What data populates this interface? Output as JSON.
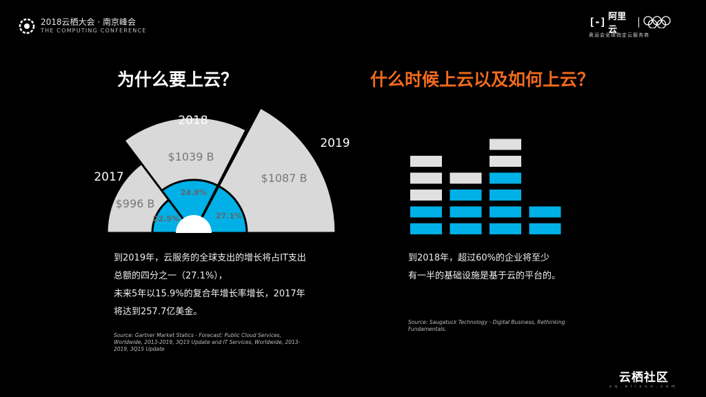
{
  "header": {
    "event_title": "2018云栖大会 · 南京峰会",
    "event_subtitle": "THE COMPUTING CONFERENCE",
    "brand_symbol": "[-]",
    "brand_name": "阿里云",
    "brand_subtitle": "奥运会全球指定云服务商"
  },
  "left": {
    "title": "为什么要上云？",
    "paragraph": [
      "到2019年，云服务的全球支出的增长将占IT支出",
      "总额的四分之一（27.1%），",
      "未来5年以15.9%的复合年增长率增长，2017年",
      "将达到257.7亿美金。"
    ],
    "source": [
      "Source: Gartner Market Statics - Forecast: Public Cloud Services,",
      "Worldwide, 2013-2019, 3Q15 Update and IT Services, Worldwide, 2013-",
      "2019, 3Q15 Update"
    ]
  },
  "right": {
    "title": "什么时候上云以及如何上云？",
    "paragraph": [
      "到2018年，超过60%的企业将至少",
      "有一半的基础设施是基于云的平台的。"
    ],
    "source": [
      "Source: Saugatuck Technology - Digital Business, Rethinking",
      "Fundamentals."
    ]
  },
  "chart_data": [
    {
      "type": "pie",
      "categories": [
        "2017",
        "2018",
        "2019"
      ],
      "values": [
        996,
        1039,
        1087
      ],
      "value_labels": [
        "$996 B",
        "$1039 B",
        "$1087 B"
      ],
      "share_values": [
        22.5,
        24.8,
        27.1
      ],
      "share_labels": [
        "22.5%",
        "24.8%",
        "27.1%"
      ],
      "colors": {
        "outer": "#d9d9d9",
        "inner": "#00b0e6",
        "value_text": "#777777",
        "share_text": "#666666"
      }
    },
    {
      "type": "bar",
      "columns": [
        {
          "blue": 2,
          "gray": 3
        },
        {
          "blue": 3,
          "gray": 1
        },
        {
          "blue": 4,
          "gray": 2
        },
        {
          "blue": 2,
          "gray": 0
        }
      ],
      "colors": {
        "blue": "#00b0e6",
        "gray": "#e0e0e0"
      }
    }
  ],
  "footer": {
    "logo_text": "云栖社区",
    "logo_sub": "yq.aliyun.com"
  }
}
